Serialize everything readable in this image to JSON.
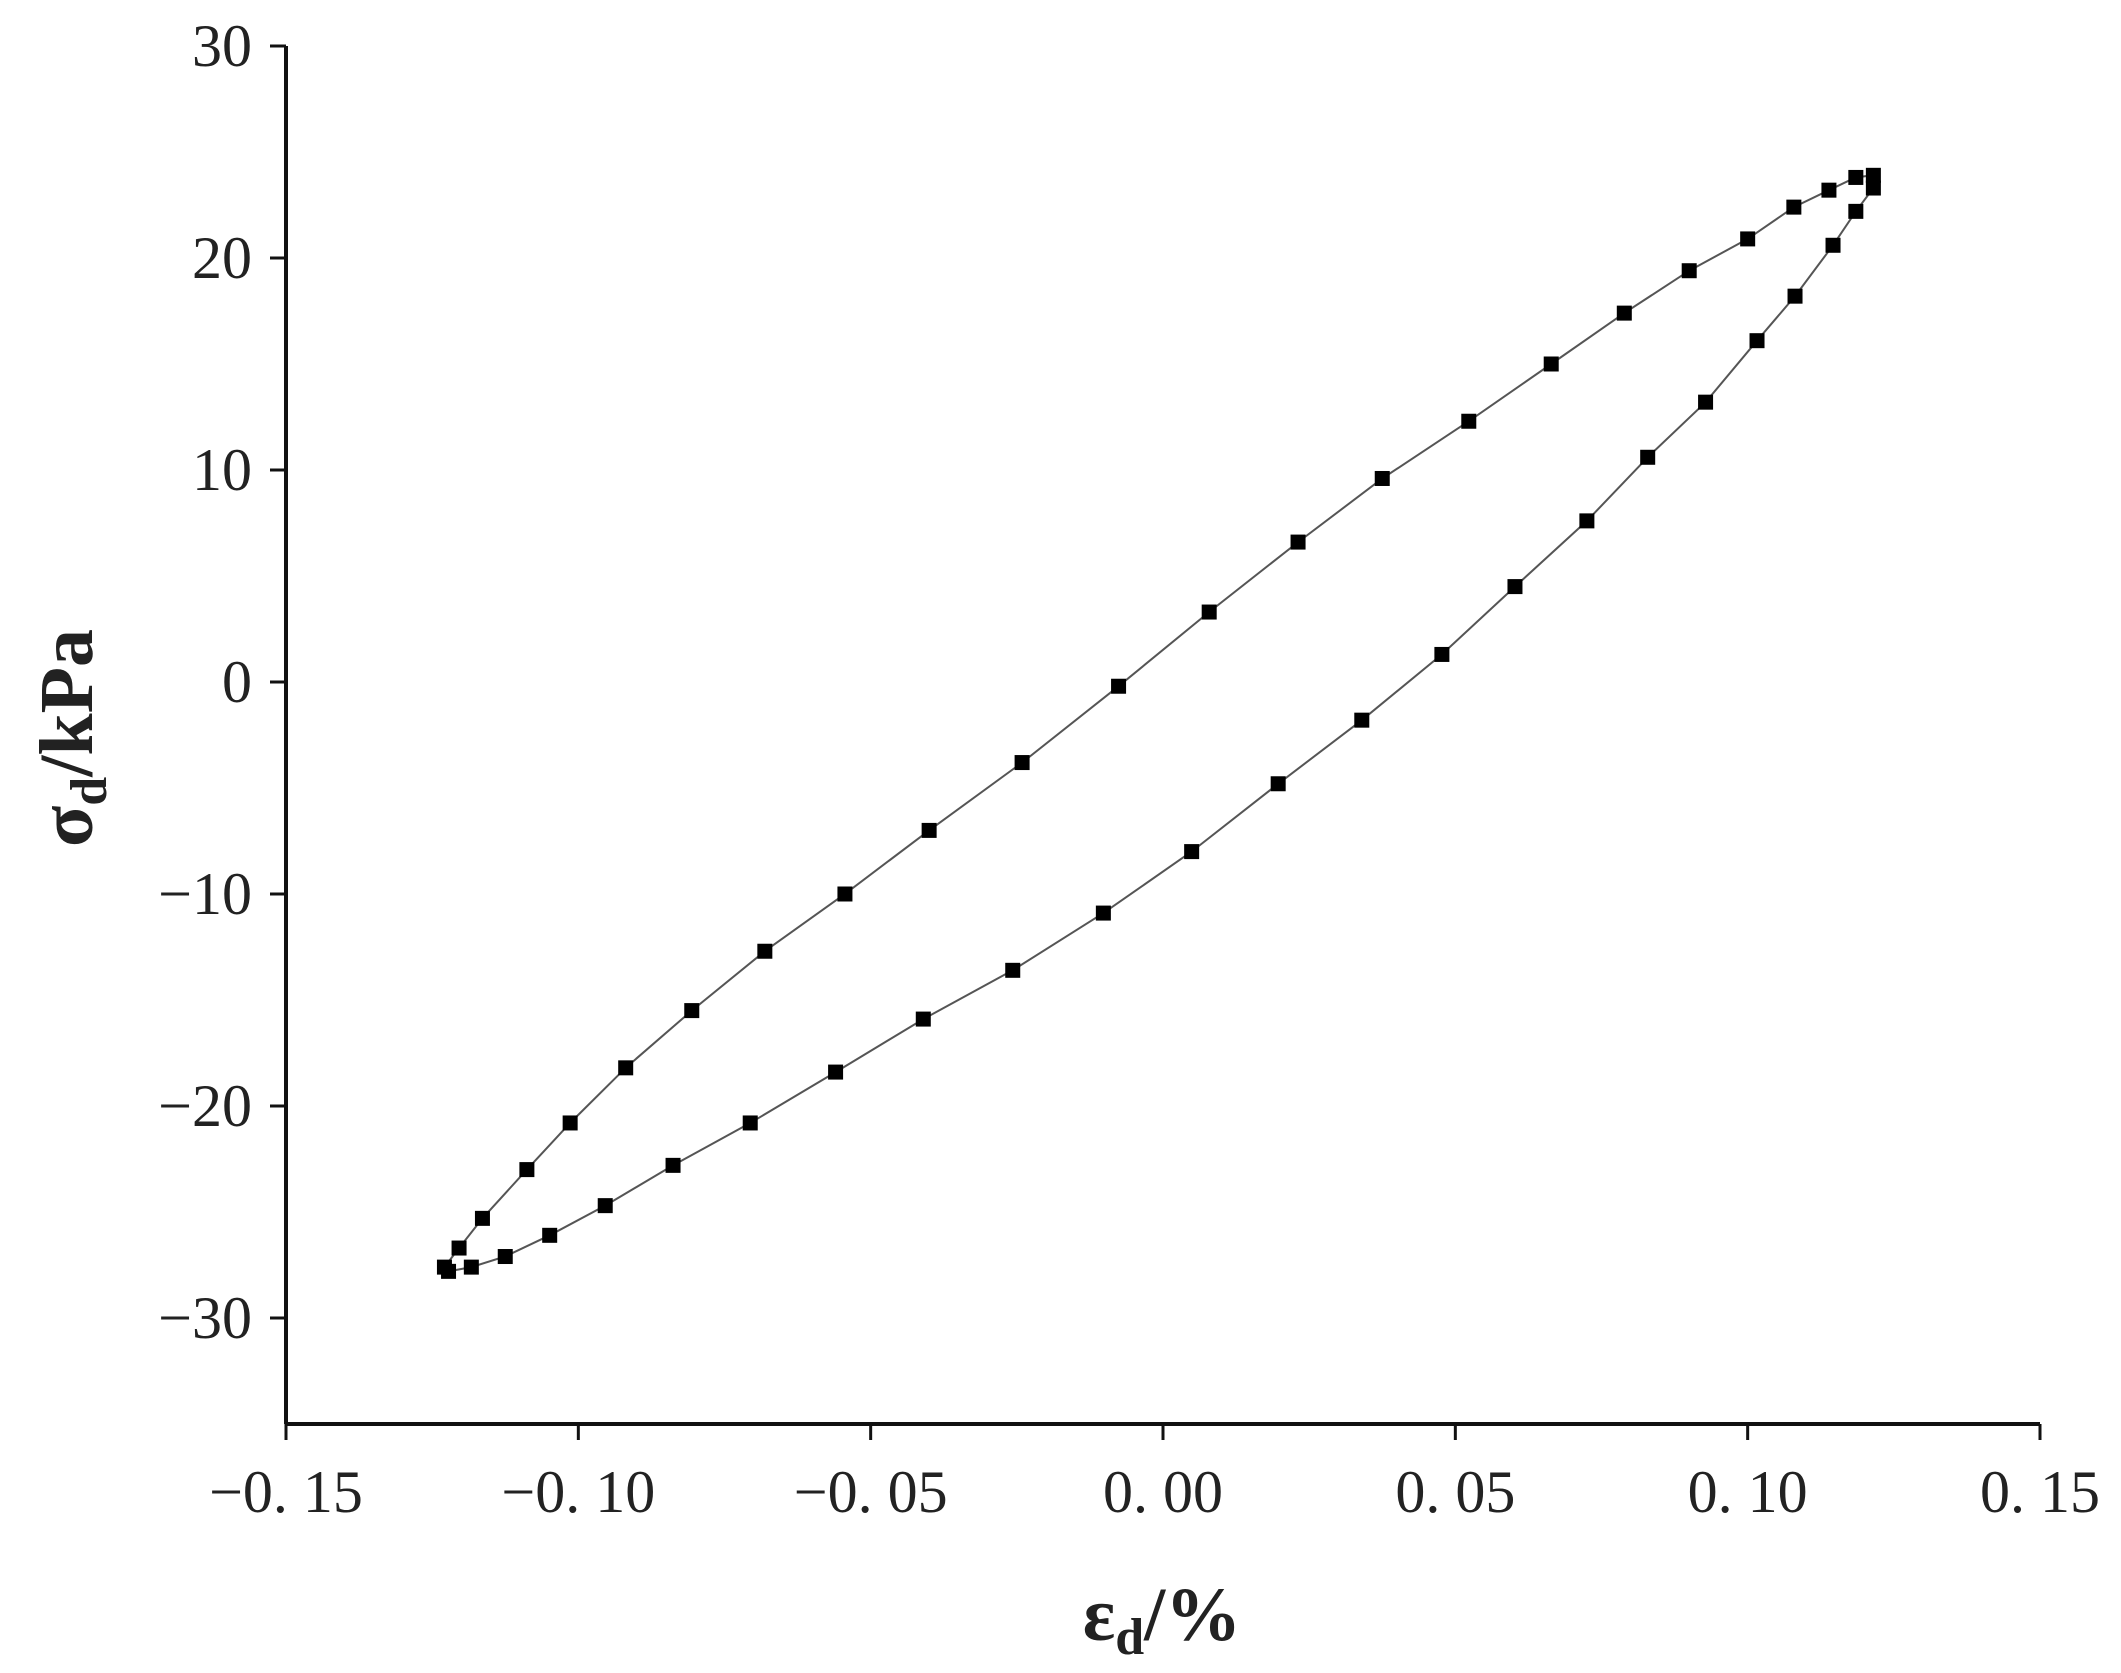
{
  "chart_data": {
    "type": "line",
    "x_label": {
      "symbol": "ε",
      "subscript": "d",
      "unit": "/%"
    },
    "y_label": {
      "symbol": "σ",
      "subscript": "d",
      "unit": "/kPa"
    },
    "xlim": [
      -0.15,
      0.15
    ],
    "ylim": [
      -35,
      30
    ],
    "xticks": [
      {
        "value": -0.15,
        "label": "−0. 15"
      },
      {
        "value": -0.1,
        "label": "−0. 10"
      },
      {
        "value": -0.05,
        "label": "−0. 05"
      },
      {
        "value": 0,
        "label": "0. 00"
      },
      {
        "value": 0.05,
        "label": "0. 05"
      },
      {
        "value": 0.1,
        "label": "0. 10"
      },
      {
        "value": 0.15,
        "label": "0. 15"
      }
    ],
    "yticks": [
      {
        "value": -30,
        "label": "−30"
      },
      {
        "value": -20,
        "label": "−20"
      },
      {
        "value": -10,
        "label": "−10"
      },
      0,
      10,
      20,
      30
    ],
    "marker": "square",
    "series": [
      {
        "color": "#000000",
        "x": [
          -0.1229,
          -0.1204,
          -0.1164,
          -0.1088,
          -0.1014,
          -0.0919,
          -0.0806,
          -0.0681,
          -0.0544,
          -0.04,
          -0.0241,
          -0.0076,
          0.0079,
          0.0231,
          0.0375,
          0.0523,
          0.0664,
          0.0789,
          0.09,
          0.1,
          0.1079,
          0.1139,
          0.1185,
          0.1215,
          0.1215,
          0.1185,
          0.1146,
          0.1081,
          0.1016,
          0.0928,
          0.0829,
          0.0725,
          0.0602,
          0.0477,
          0.034,
          0.0197,
          0.0049,
          -0.0102,
          -0.0257,
          -0.041,
          -0.056,
          -0.0706,
          -0.0838,
          -0.0954,
          -0.1049,
          -0.1125,
          -0.1183,
          -0.1222
        ],
        "y": [
          -27.6,
          -26.7,
          -25.3,
          -23.0,
          -20.8,
          -18.2,
          -15.5,
          -12.7,
          -10.0,
          -7.0,
          -3.8,
          -0.2,
          3.3,
          6.6,
          9.6,
          12.3,
          15.0,
          17.4,
          19.4,
          20.9,
          22.4,
          23.2,
          23.8,
          23.9,
          23.3,
          22.2,
          20.6,
          18.2,
          16.1,
          13.2,
          10.6,
          7.6,
          4.5,
          1.3,
          -1.8,
          -4.8,
          -8.0,
          -10.9,
          -13.6,
          -15.9,
          -18.4,
          -20.8,
          -22.8,
          -24.7,
          -26.1,
          -27.1,
          -27.6,
          -27.8
        ]
      }
    ]
  }
}
